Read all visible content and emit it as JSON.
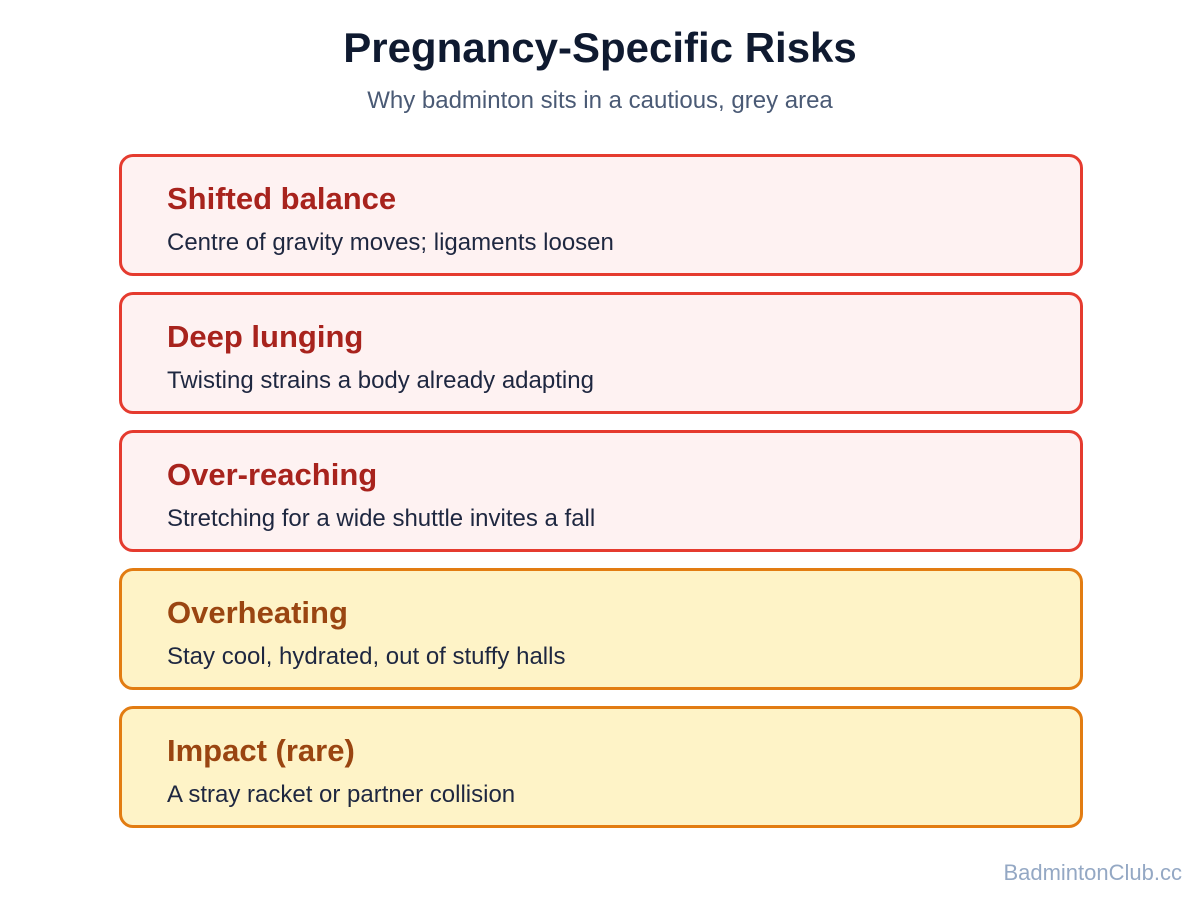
{
  "header": {
    "title": "Pregnancy-Specific Risks",
    "subtitle": "Why badminton sits in a cautious, grey area"
  },
  "items": [
    {
      "title": "Shifted balance",
      "description": "Centre of gravity moves; ligaments loosen",
      "border": "#e53b2f",
      "fill": "#fef2f2",
      "text_color": "#a8231d"
    },
    {
      "title": "Deep lunging",
      "description": "Twisting strains a body already adapting",
      "border": "#e53b2f",
      "fill": "#fef2f2",
      "text_color": "#a8231d"
    },
    {
      "title": "Over-reaching",
      "description": "Stretching for a wide shuttle invites a fall",
      "border": "#e53b2f",
      "fill": "#fef2f2",
      "text_color": "#a8231d"
    },
    {
      "title": "Overheating",
      "description": "Stay cool, hydrated, out of stuffy halls",
      "border": "#e27c12",
      "fill": "#fef3c7",
      "text_color": "#9a4511"
    },
    {
      "title": "Impact (rare)",
      "description": "A stray racket or partner collision",
      "border": "#e27c12",
      "fill": "#fef3c7",
      "text_color": "#9a4511"
    }
  ],
  "footer": "BadmintonClub.cc"
}
